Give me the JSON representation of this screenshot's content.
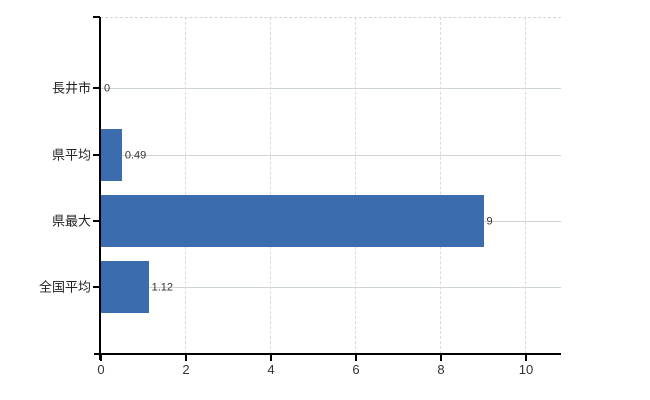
{
  "chart_data": {
    "type": "bar",
    "orientation": "horizontal",
    "title": "",
    "xlabel": "",
    "ylabel": "",
    "categories": [
      "長井市",
      "県平均",
      "県最大",
      "全国平均"
    ],
    "values": [
      0,
      0.49,
      9,
      1.12
    ],
    "value_labels": [
      "0",
      "0.49",
      "9",
      "1.12"
    ],
    "x_ticks": [
      0,
      2,
      4,
      6,
      8,
      10
    ],
    "x_tick_labels": [
      "0",
      "2",
      "4",
      "6",
      "8",
      "10"
    ],
    "xlim": [
      0,
      10.85
    ],
    "grid": true,
    "legend": "none",
    "colors": {
      "bar": "#3b6cae",
      "axis": "#000000",
      "h_gridline": "#ccd6cf",
      "v_gridline": "#dadada",
      "top_border": "#d4d4d4",
      "category_label_text": "#222222",
      "tick_label_text": "#333333",
      "value_label_text": "#333333",
      "background": "#ffffff"
    }
  }
}
